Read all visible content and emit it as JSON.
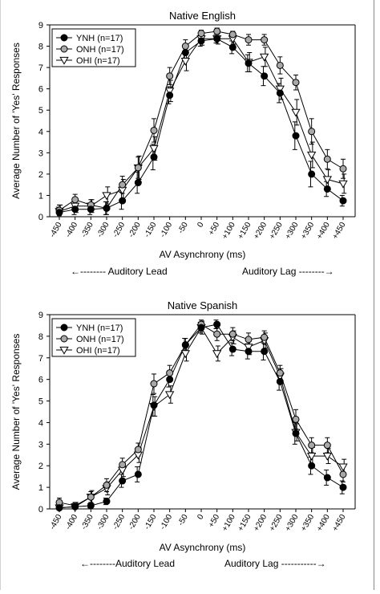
{
  "chart_data": [
    {
      "type": "line",
      "title": "Native English",
      "xlabel": "AV Asynchrony (ms)",
      "ylabel": "Average Number of 'Yes' Responses",
      "ylim": [
        0,
        9
      ],
      "yticks": [
        0,
        1,
        2,
        3,
        4,
        5,
        6,
        7,
        8,
        9
      ],
      "categories": [
        "-450",
        "-400",
        "-350",
        "-300",
        "-250",
        "-200",
        "-150",
        "-100",
        "-50",
        "0",
        "+50",
        "+100",
        "+150",
        "+200",
        "+250",
        "+300",
        "+350",
        "+400",
        "+450"
      ],
      "annotations": [
        "←-------- Auditory Lead",
        "Auditory Lag --------→"
      ],
      "legend_position": "top-left",
      "series": [
        {
          "name": "YNH (n=17)",
          "marker": "filled-circle",
          "color": "#000000",
          "values": [
            0.2,
            0.35,
            0.35,
            0.4,
            0.75,
            1.6,
            2.8,
            5.7,
            7.7,
            8.25,
            8.35,
            7.95,
            7.2,
            6.6,
            5.8,
            3.8,
            2.0,
            1.3,
            0.75
          ],
          "errors": [
            0.25,
            0.25,
            0.25,
            0.3,
            0.4,
            0.5,
            0.6,
            0.4,
            0.3,
            0.25,
            0.2,
            0.3,
            0.4,
            0.45,
            0.45,
            0.65,
            0.6,
            0.35,
            0.25
          ]
        },
        {
          "name": "ONH (n=17)",
          "marker": "gray-circle",
          "color": "#a8a8a8",
          "values": [
            0.3,
            0.8,
            0.55,
            0.4,
            1.5,
            2.3,
            4.05,
            6.6,
            8.0,
            8.6,
            8.7,
            8.55,
            8.3,
            8.3,
            7.1,
            6.3,
            4.0,
            2.7,
            2.25
          ],
          "errors": [
            0.25,
            0.25,
            0.25,
            0.3,
            0.4,
            0.5,
            0.55,
            0.4,
            0.3,
            0.15,
            0.15,
            0.15,
            0.25,
            0.25,
            0.4,
            0.35,
            0.6,
            0.45,
            0.45
          ]
        },
        {
          "name": "OHI (n=17)",
          "marker": "open-triangle-down",
          "color": "#ffffff",
          "values": [
            0.25,
            0.5,
            0.5,
            1.0,
            1.25,
            2.3,
            3.2,
            5.9,
            7.3,
            8.35,
            8.35,
            8.35,
            7.25,
            7.5,
            6.0,
            4.9,
            2.9,
            1.75,
            1.55
          ],
          "errors": [
            0.3,
            0.3,
            0.3,
            0.4,
            0.5,
            0.55,
            0.55,
            0.5,
            0.45,
            0.3,
            0.25,
            0.25,
            0.45,
            0.45,
            0.5,
            0.6,
            0.6,
            0.45,
            0.45
          ]
        }
      ]
    },
    {
      "type": "line",
      "title": "Native Spanish",
      "xlabel": "AV Asynchrony (ms)",
      "ylabel": "Average Number of 'Yes' Responses",
      "ylim": [
        0,
        9
      ],
      "yticks": [
        0,
        1,
        2,
        3,
        4,
        5,
        6,
        7,
        8,
        9
      ],
      "categories": [
        "-450",
        "-400",
        "-350",
        "-300",
        "-250",
        "-200",
        "-150",
        "-100",
        "-50",
        "0",
        "+50",
        "+100",
        "+150",
        "+200",
        "+250",
        "+300",
        "+350",
        "+400",
        "+450"
      ],
      "annotations": [
        "←--------Auditory Lead",
        "Auditory Lag -----------→"
      ],
      "legend_position": "top-left",
      "series": [
        {
          "name": "YNH (n=17)",
          "marker": "filled-circle",
          "color": "#000000",
          "values": [
            0.05,
            0.1,
            0.15,
            0.35,
            1.3,
            1.6,
            4.8,
            6.0,
            7.6,
            8.4,
            8.55,
            7.4,
            7.3,
            7.3,
            5.9,
            3.5,
            2.0,
            1.45,
            1.0
          ],
          "errors": [
            0.1,
            0.1,
            0.1,
            0.15,
            0.3,
            0.35,
            0.5,
            0.35,
            0.3,
            0.25,
            0.2,
            0.3,
            0.35,
            0.4,
            0.4,
            0.5,
            0.4,
            0.35,
            0.3
          ]
        },
        {
          "name": "ONH (n=17)",
          "marker": "gray-circle",
          "color": "#a8a8a8",
          "values": [
            0.3,
            0.15,
            0.55,
            1.1,
            2.05,
            2.75,
            5.8,
            6.3,
            7.6,
            8.55,
            8.1,
            8.1,
            7.85,
            7.95,
            6.3,
            4.15,
            2.95,
            2.95,
            1.6
          ],
          "errors": [
            0.2,
            0.15,
            0.25,
            0.3,
            0.3,
            0.3,
            0.45,
            0.35,
            0.3,
            0.2,
            0.3,
            0.3,
            0.3,
            0.3,
            0.35,
            0.45,
            0.35,
            0.35,
            0.35
          ]
        },
        {
          "name": "OHI (n=17)",
          "marker": "open-triangle-down",
          "color": "#ffffff",
          "values": [
            0.05,
            0.1,
            0.55,
            0.95,
            1.8,
            2.5,
            4.75,
            5.3,
            7.2,
            8.4,
            7.2,
            7.95,
            7.5,
            7.8,
            6.15,
            3.55,
            2.45,
            2.45,
            1.95
          ],
          "errors": [
            0.15,
            0.2,
            0.3,
            0.3,
            0.3,
            0.35,
            0.45,
            0.4,
            0.35,
            0.3,
            0.35,
            0.3,
            0.35,
            0.35,
            0.35,
            0.4,
            0.4,
            0.35,
            0.35
          ]
        }
      ]
    }
  ]
}
